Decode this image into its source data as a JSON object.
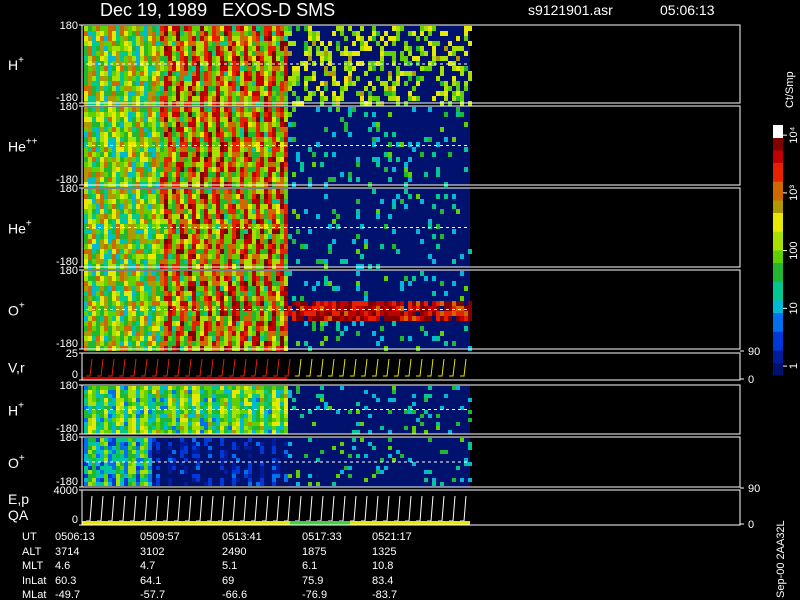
{
  "header": {
    "title": "Dec 19, 1989   EXOS-D SMS",
    "file": "s9121901.asr",
    "time": "05:06:13"
  },
  "panels": [
    {
      "label": "H",
      "sup": "+",
      "yticks": [
        180,
        -180
      ]
    },
    {
      "label": "He",
      "sup": "++",
      "yticks": [
        180,
        -180
      ]
    },
    {
      "label": "He",
      "sup": "+",
      "yticks": [
        180,
        -180
      ]
    },
    {
      "label": "O",
      "sup": "+",
      "yticks": [
        180,
        -180
      ]
    },
    {
      "label": "V,r",
      "yticks": [
        25,
        0
      ],
      "y2ticks": [
        90,
        0
      ]
    },
    {
      "label": "H",
      "sup": "+",
      "yticks": [
        180,
        -180
      ]
    },
    {
      "label": "O",
      "sup": "+",
      "yticks": [
        180,
        -180
      ]
    },
    {
      "label": "E,p",
      "label2": "QA",
      "yticks": [
        4000,
        0
      ],
      "y2ticks": [
        90,
        0
      ]
    }
  ],
  "colorbar": {
    "label": "Ct/Smp",
    "scale": "log",
    "lim": [
      0.7,
      15000
    ],
    "ticks": [
      1,
      10,
      100,
      {
        "value": 1000,
        "label": "10³"
      },
      {
        "value": 10000,
        "label": "10⁴"
      }
    ]
  },
  "footer": {
    "rows": [
      {
        "label": "UT",
        "values": [
          "0506:13",
          "0509:57",
          "0513:41",
          "0517:33",
          "0521:17"
        ]
      },
      {
        "label": "ALT",
        "values": [
          3714,
          3102,
          2490,
          1875,
          1325
        ]
      },
      {
        "label": "MLT",
        "values": [
          4.6,
          4.7,
          5.1,
          6.1,
          10.8
        ]
      },
      {
        "label": "InLat",
        "values": [
          60.3,
          64.1,
          69.0,
          75.9,
          83.4
        ]
      },
      {
        "label": "MLat",
        "values": [
          -49.7,
          -57.7,
          -66.6,
          -76.9,
          -83.7
        ]
      }
    ]
  },
  "stamp": "Sep-00 2AA32L"
}
